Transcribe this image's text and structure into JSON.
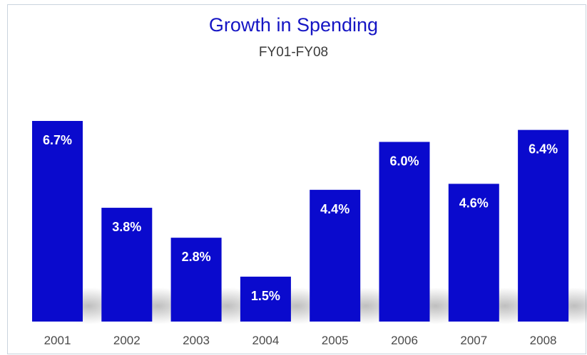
{
  "chart_data": {
    "type": "bar",
    "title": "Growth in Spending",
    "subtitle": "FY01-FY08",
    "categories": [
      "2001",
      "2002",
      "2003",
      "2004",
      "2005",
      "2006",
      "2007",
      "2008"
    ],
    "values": [
      6.7,
      3.8,
      2.8,
      1.5,
      4.4,
      6.0,
      4.6,
      6.4
    ],
    "data_labels": [
      "6.7%",
      "3.8%",
      "2.8%",
      "1.5%",
      "4.4%",
      "6.0%",
      "4.6%",
      "6.4%"
    ],
    "xlabel": "",
    "ylabel": "",
    "ylim": [
      0,
      6.7
    ],
    "grid": false,
    "legend": "none",
    "bar_color": "#0a0acd"
  }
}
